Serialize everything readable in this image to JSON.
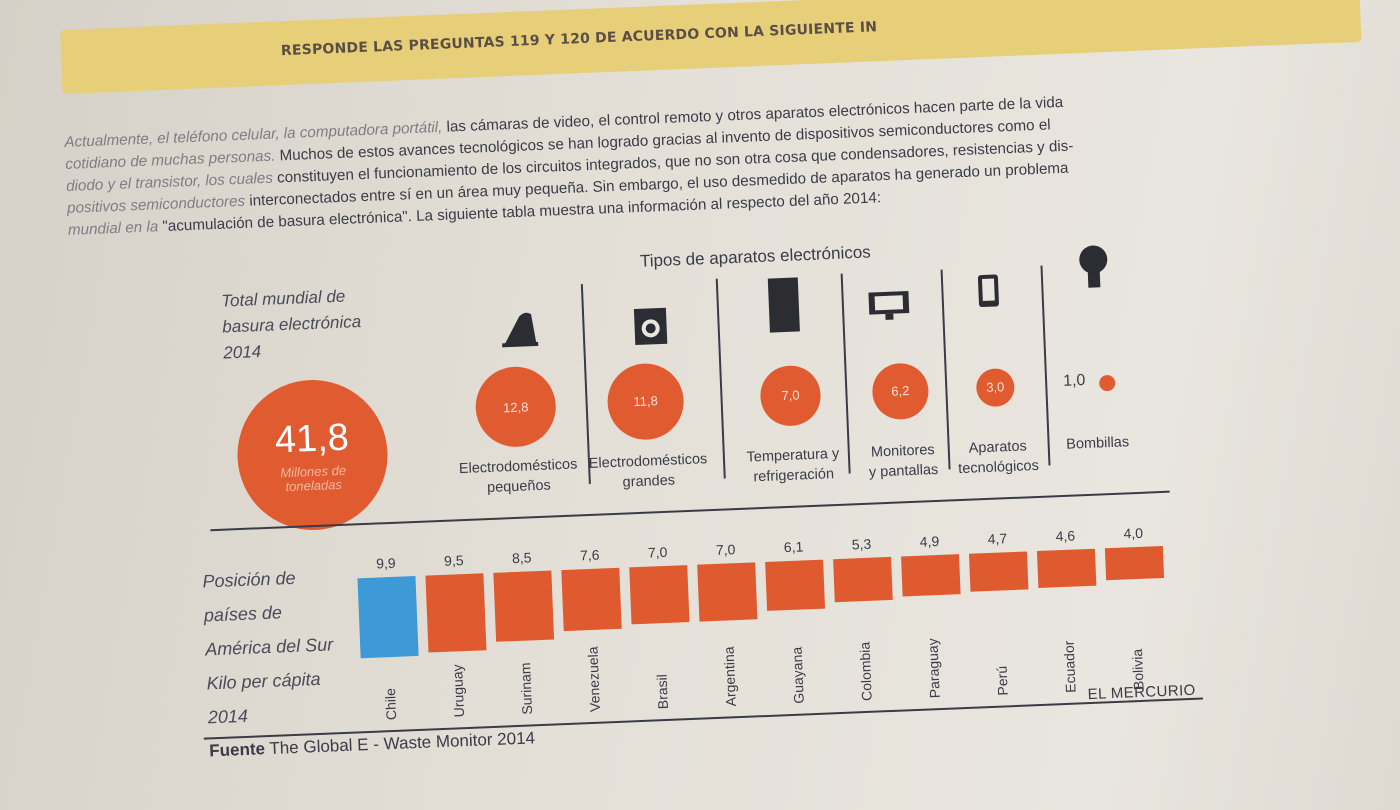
{
  "header": {
    "instruction": "RESPONDE LAS PREGUNTAS 119 Y 120 DE ACUERDO CON LA SIGUIENTE IN"
  },
  "intro": {
    "line1_faded": "Actualmente, el teléfono celular, la computadora portátil, ",
    "line1": "las cámaras de video, el control remoto y otros aparatos electrónicos hacen parte de la vida",
    "line2_faded": "cotidiano de muchas personas. ",
    "line2": "Muchos de estos avances tecnológicos se han logrado gracias al invento de dispositivos semiconductores como el",
    "line3_faded": "diodo y el transistor, los cuales ",
    "line3": "constituyen el funcionamiento de los circuitos integrados, que no son otra cosa que condensadores, resistencias y dis-",
    "line4_faded": "positivos semiconductores ",
    "line4": "interconectados entre sí en un área muy pequeña. Sin embargo, el uso desmedido de aparatos ha generado un problema",
    "line5_faded": "mundial en la ",
    "line5": "\"acumulación de basura electrónica\". La siguiente tabla muestra una información al respecto del año 2014:"
  },
  "chart_data": [
    {
      "type": "bubble",
      "title": "Tipos de aparatos electrónicos",
      "total_label_1": "Total mundial de",
      "total_label_2": "basura electrónica",
      "total_label_3": "2014",
      "total_value": 41.8,
      "total_value_label": "41,8",
      "total_unit_1": "Millones de",
      "total_unit_2": "toneladas",
      "categories": [
        {
          "line1": "Electrodomésticos",
          "line2": "pequeños",
          "value": 12.8,
          "value_label": "12,8"
        },
        {
          "line1": "Electrodomésticos",
          "line2": "grandes",
          "value": 11.8,
          "value_label": "11,8"
        },
        {
          "line1": "Temperatura y",
          "line2": "refrigeración",
          "value": 7.0,
          "value_label": "7,0"
        },
        {
          "line1": "Monitores",
          "line2": "y pantallas",
          "value": 6.2,
          "value_label": "6,2"
        },
        {
          "line1": "Aparatos",
          "line2": "tecnológicos",
          "value": 3.0,
          "value_label": "3,0"
        },
        {
          "line1": "Bombillas",
          "line2": "",
          "value": 1.0,
          "value_label": "1,0"
        }
      ],
      "colors": {
        "bubble": "#e15b31"
      }
    },
    {
      "type": "bar",
      "label_1": "Posición de",
      "label_2": "países de",
      "label_3": "América del Sur",
      "label_4": "Kilo per cápita",
      "label_5": "2014",
      "categories": [
        "Chile",
        "Uruguay",
        "Surinam",
        "Venezuela",
        "Brasil",
        "Argentina",
        "Guayana",
        "Colombia",
        "Paraguay",
        "Perú",
        "Ecuador",
        "Bolivia"
      ],
      "values": [
        9.9,
        9.5,
        8.5,
        7.6,
        7.0,
        7.0,
        6.1,
        5.3,
        4.9,
        4.7,
        4.6,
        4.0
      ],
      "value_labels": [
        "9,9",
        "9,5",
        "8,5",
        "7,6",
        "7,0",
        "7,0",
        "6,1",
        "5,3",
        "4,9",
        "4,7",
        "4,6",
        "4,0"
      ],
      "highlight": "Chile",
      "colors": {
        "bar": "#e05a2f",
        "highlight": "#3d9ad6"
      }
    }
  ],
  "footer": {
    "publisher": "EL MERCURIO",
    "source_label": "Fuente",
    "source_text": "The Global E - Waste Monitor 2014"
  }
}
